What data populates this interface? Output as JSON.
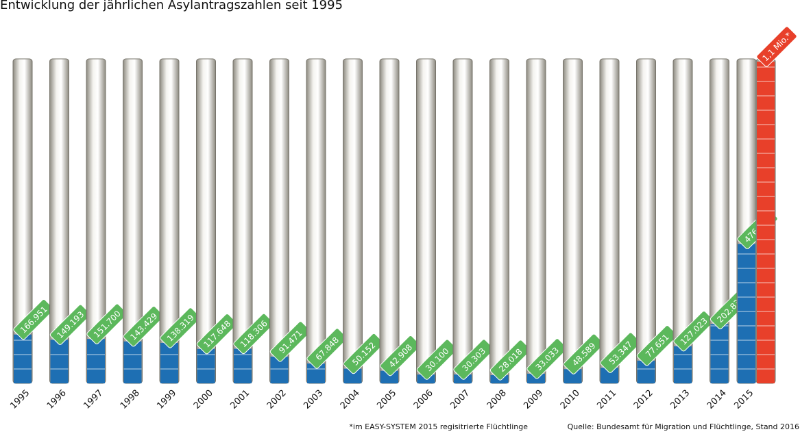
{
  "chart_data": {
    "type": "bar",
    "title": "Entwicklung der jährlichen Asylantragszahlen seit 1995",
    "categories": [
      "1995",
      "1996",
      "1997",
      "1998",
      "1999",
      "2000",
      "2001",
      "2002",
      "2003",
      "2004",
      "2005",
      "2006",
      "2007",
      "2008",
      "2009",
      "2010",
      "2011",
      "2012",
      "2013",
      "2014",
      "2015"
    ],
    "series": [
      {
        "color": "#1e6fb3",
        "values": [
          166951,
          149193,
          151700,
          143429,
          138319,
          117648,
          118306,
          91471,
          67848,
          50152,
          42908,
          30100,
          30303,
          28018,
          33033,
          48589,
          53347,
          77651,
          127023,
          202834,
          476649
        ],
        "value_labels": [
          "166.951",
          "149.193",
          "151.700",
          "143.429",
          "138.319",
          "117.648",
          "118.306",
          "91.471",
          "67.848",
          "50.152",
          "42.908",
          "30.100",
          "30.303",
          "28.018",
          "33.033",
          "48.589",
          "53.347",
          "77.651",
          "127.023",
          "202.834",
          "476.649"
        ]
      },
      {
        "color": "#e8402a",
        "values": [
          null,
          null,
          null,
          null,
          null,
          null,
          null,
          null,
          null,
          null,
          null,
          null,
          null,
          null,
          null,
          null,
          null,
          null,
          null,
          null,
          1100000
        ],
        "value_labels": [
          null,
          null,
          null,
          null,
          null,
          null,
          null,
          null,
          null,
          null,
          null,
          null,
          null,
          null,
          null,
          null,
          null,
          null,
          null,
          null,
          "1,1 Mio.*"
        ]
      }
    ],
    "ylim": [
      0,
      1100000
    ],
    "label_color": "#5cb85c",
    "notes": [
      "*im EASY-SYSTEM 2015 regisitrierte Flüchtlinge",
      "Quelle: Bundesamt für Migration und Flüchtlinge, Stand 2016"
    ]
  }
}
